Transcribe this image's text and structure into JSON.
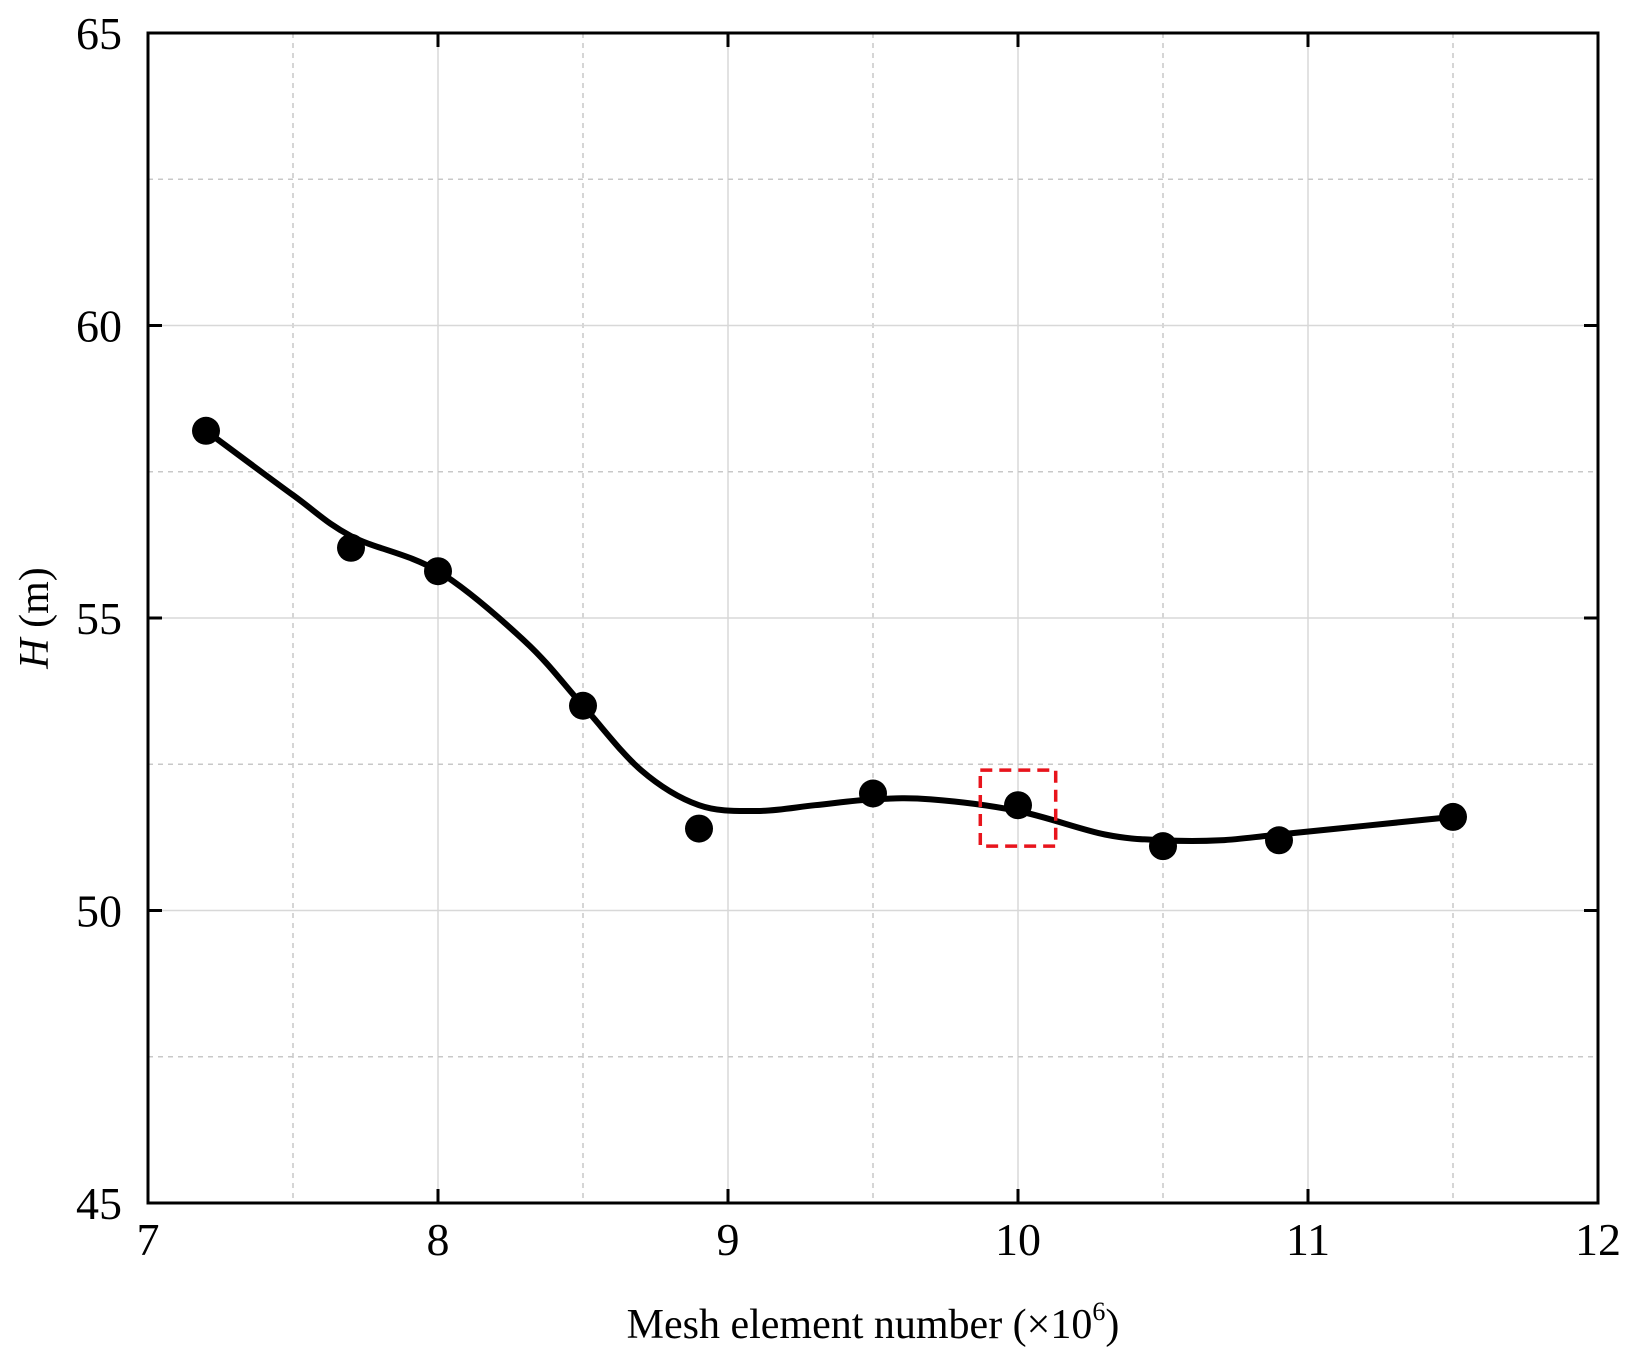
{
  "chart_data": {
    "type": "line",
    "xlabel": "Mesh element number (×10⁶)",
    "xlabel_main": "Mesh element number (×10",
    "xlabel_sup": "6",
    "xlabel_close": ")",
    "ylabel_symbol": "H",
    "ylabel_unit": " (m)",
    "xlim": [
      7,
      12
    ],
    "ylim": [
      45,
      65
    ],
    "xticks": [
      7,
      8,
      9,
      10,
      11,
      12
    ],
    "yticks": [
      45,
      50,
      55,
      60,
      65
    ],
    "grid": true,
    "series": [
      {
        "x": [
          7.2,
          7.7,
          8.0,
          8.5,
          8.9,
          9.5,
          10.0,
          10.5,
          10.9,
          11.5
        ],
        "y": [
          58.2,
          56.2,
          55.8,
          53.5,
          51.4,
          52.0,
          51.8,
          51.1,
          51.2,
          51.6
        ],
        "marker": "circle",
        "color": "#000000"
      }
    ],
    "curve": {
      "x": [
        7.2,
        7.5,
        7.7,
        8.0,
        8.3,
        8.5,
        8.7,
        8.9,
        9.1,
        9.3,
        9.5,
        9.7,
        10.0,
        10.3,
        10.5,
        10.7,
        10.9,
        11.2,
        11.5
      ],
      "y": [
        58.2,
        57.1,
        56.4,
        55.8,
        54.6,
        53.5,
        52.4,
        51.8,
        51.7,
        51.8,
        51.9,
        51.9,
        51.7,
        51.3,
        51.2,
        51.2,
        51.3,
        51.45,
        51.6
      ],
      "color": "#000000"
    },
    "annotation": {
      "type": "dashed-box",
      "around_x": 10.0,
      "x_range": [
        9.87,
        10.13
      ],
      "y_range": [
        51.1,
        52.4
      ],
      "color": "#e8141c"
    }
  }
}
